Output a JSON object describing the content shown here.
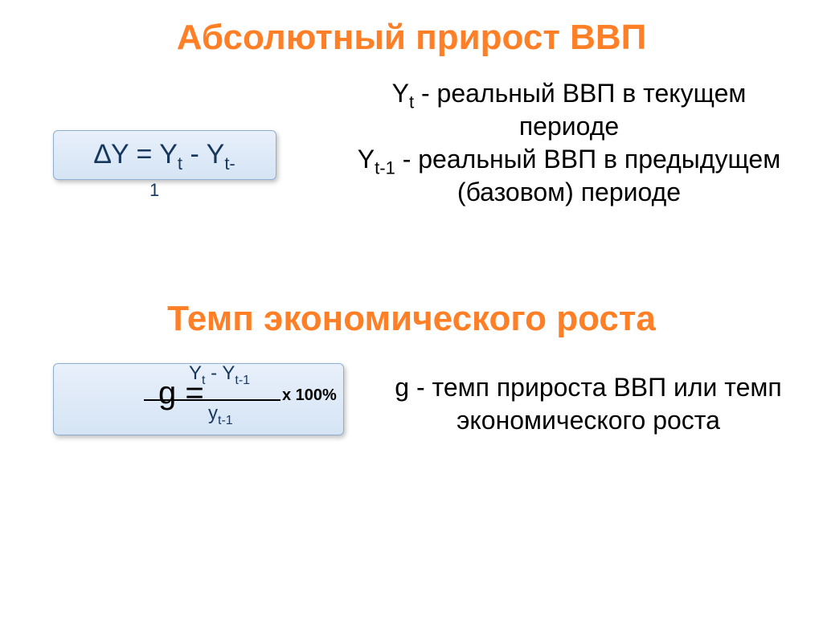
{
  "section1": {
    "title": "Абсолютный прирост ВВП",
    "formula_delta": "∆Y = Y",
    "formula_t": "t",
    "formula_minus": " - Y",
    "formula_tminus": "t-",
    "formula_one": "1",
    "desc_yt_sym": "Y",
    "desc_yt_sub": "t",
    "desc_yt_text": " - реальный ВВП в текущем периоде",
    "desc_ytm1_sym": "Y",
    "desc_ytm1_sub": "t-1",
    "desc_ytm1_text": " - реальный ВВП в предыдущем (базовом) периоде"
  },
  "section2": {
    "title": "Темп экономического роста",
    "g_eq": "g =",
    "yt_top_a": "Y",
    "yt_top_a_sub": "t",
    "yt_top_mid": " - Y",
    "yt_top_b_sub": "t-1",
    "yt_bottom_a": "y",
    "yt_bottom_sub": "t-1",
    "x100": "x 100%",
    "desc_g_sym": "g",
    "desc_g_text": " - темп прироста ВВП или темп экономического роста"
  },
  "colors": {
    "title": "#ff7f27",
    "formula_text": "#17375e",
    "body_text": "#000000",
    "box_border": "#8faed0",
    "box_bg_top": "#e8f0fb",
    "box_bg_bottom": "#d5e4f4"
  },
  "fonts": {
    "family": "Comic Sans MS",
    "title_size_pt": 33,
    "body_size_pt": 24,
    "formula_size_pt": 26
  }
}
